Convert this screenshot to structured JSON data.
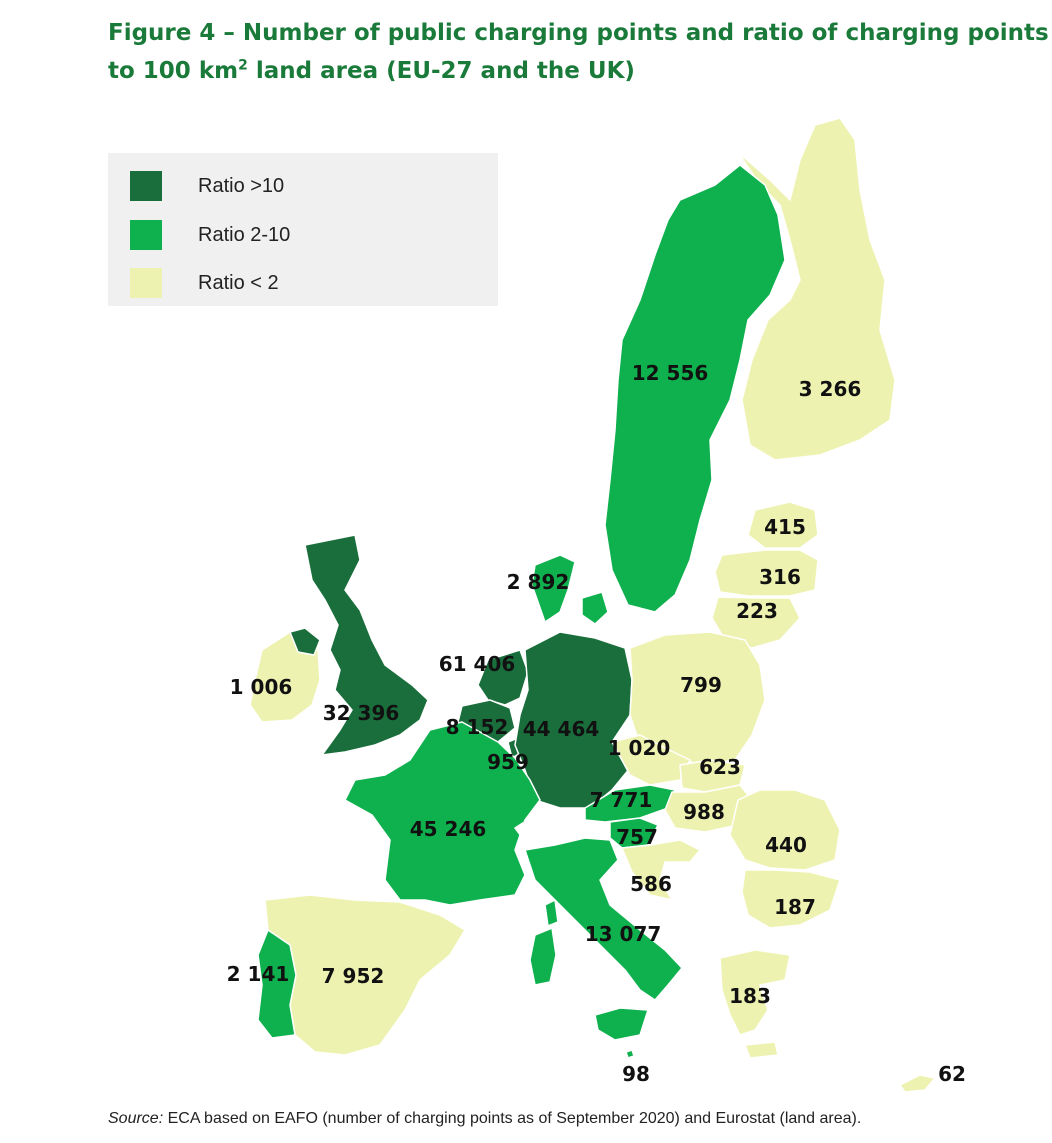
{
  "title": {
    "line1": "Figure 4 – Number of public charging points and ratio of charging points",
    "line2_pre": "to 100 km",
    "line2_sup": "2",
    "line2_post": " land area (EU-27 and the UK)"
  },
  "legend": [
    {
      "label": "Ratio >10",
      "color": "#1a6e3c"
    },
    {
      "label": "Ratio 2-10",
      "color": "#0fb04e"
    },
    {
      "label": "Ratio < 2",
      "color": "#eef2b0"
    }
  ],
  "labels": {
    "sweden": "12 556",
    "finland": "3 266",
    "estonia": "415",
    "latvia": "316",
    "lithuania": "223",
    "denmark": "2 892",
    "ireland": "1 006",
    "uk": "32 396",
    "netherlands": "61 406",
    "belgium": "8 152",
    "germany": "44 464",
    "luxembourg": "959",
    "poland": "799",
    "czechia": "1 020",
    "slovakia": "623",
    "austria": "7 771",
    "hungary": "988",
    "slovenia": "757",
    "croatia": "586",
    "romania": "440",
    "bulgaria": "187",
    "france": "45 246",
    "italy": "13 077",
    "portugal": "2 141",
    "spain": "7 952",
    "greece": "183",
    "malta": "98",
    "cyprus": "62"
  },
  "source": {
    "prefix": "Source:",
    "text": " ECA based on EAFO (number of charging points as of September 2020) and Eurostat (land area)."
  }
}
